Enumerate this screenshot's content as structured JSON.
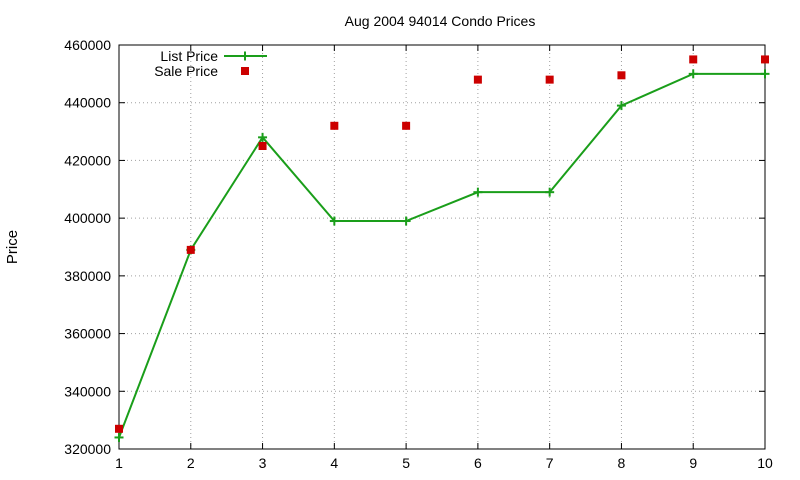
{
  "chart_data": {
    "type": "line",
    "title": "Aug 2004 94014 Condo Prices",
    "xlabel": "",
    "ylabel": "Price",
    "xlim": [
      1,
      10
    ],
    "ylim": [
      320000,
      460000
    ],
    "x_ticks": [
      "1",
      "2",
      "3",
      "4",
      "5",
      "6",
      "7",
      "8",
      "9",
      "10"
    ],
    "y_ticks": [
      "320000",
      "340000",
      "360000",
      "380000",
      "400000",
      "420000",
      "440000",
      "460000"
    ],
    "grid": true,
    "legend_position": "top-left",
    "series": [
      {
        "name": "List Price",
        "style": "linespoints",
        "color": "#1a9e1a",
        "x": [
          1,
          2,
          3,
          4,
          5,
          6,
          7,
          8,
          9,
          10
        ],
        "y": [
          324000,
          389000,
          428000,
          399000,
          399000,
          409000,
          409000,
          439000,
          450000,
          450000
        ]
      },
      {
        "name": "Sale Price",
        "style": "points",
        "color": "#cc0000",
        "x": [
          1,
          2,
          3,
          4,
          5,
          6,
          7,
          8,
          9,
          10
        ],
        "y": [
          327000,
          389000,
          425000,
          432000,
          432000,
          448000,
          448000,
          449500,
          455000,
          455000
        ]
      }
    ]
  }
}
